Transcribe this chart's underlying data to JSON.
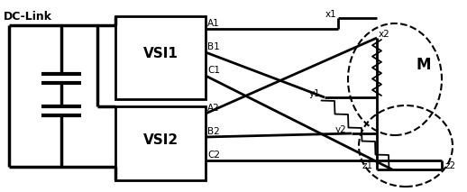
{
  "bg_color": "#ffffff",
  "line_color": "#000000",
  "lw": 2.0,
  "fig_w": 5.18,
  "fig_h": 2.13,
  "dpi": 100,
  "vsi1_text": "VSI1",
  "vsi2_text": "VSI2",
  "dc_link_text": "DC-Link",
  "motor_label": "M"
}
